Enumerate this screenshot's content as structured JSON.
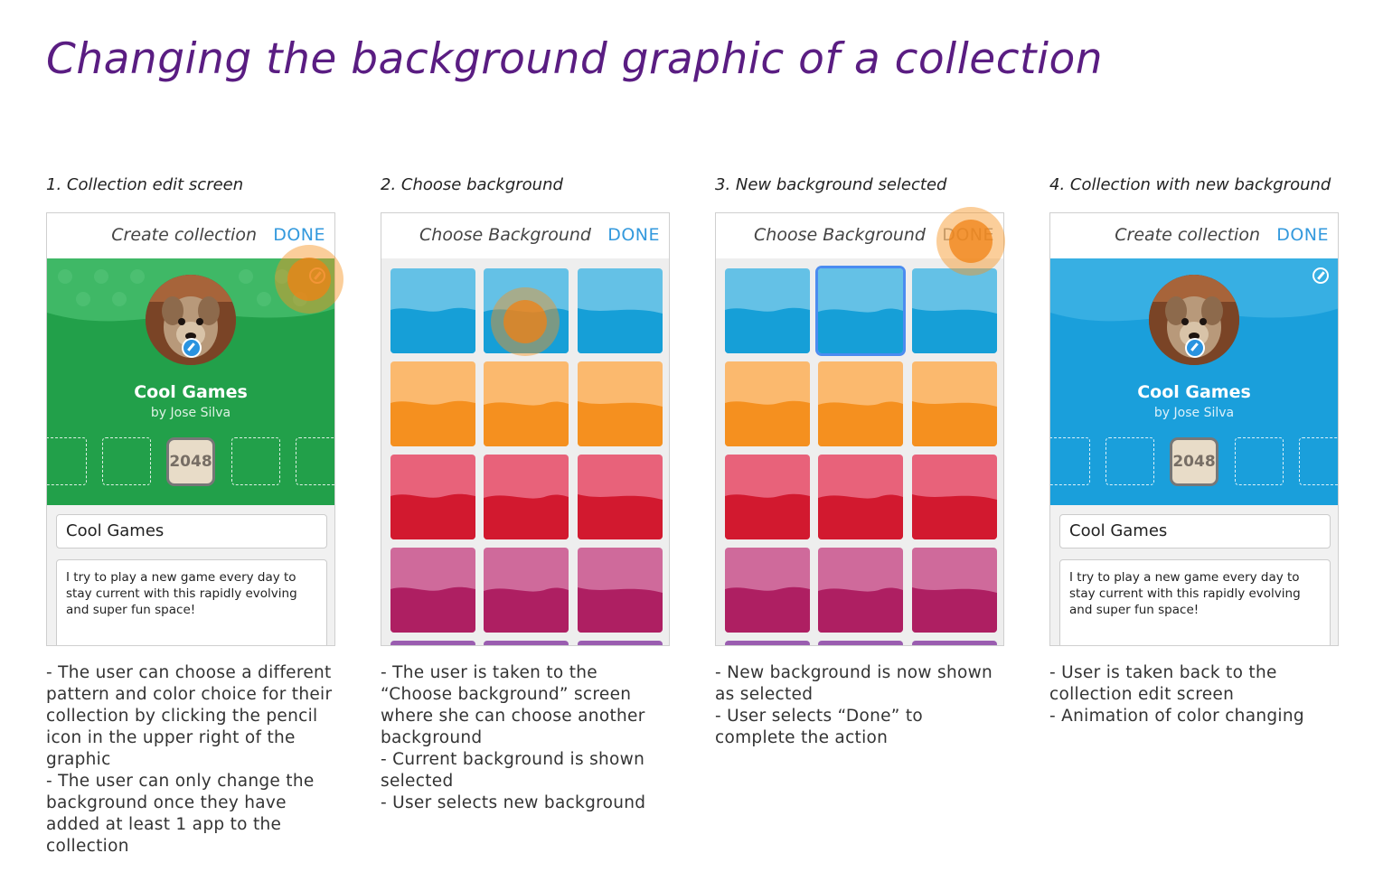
{
  "title": "Changing the background graphic of a collection",
  "colors": {
    "green": "#22a04a",
    "blue": "#1a9fdb",
    "accent_done": "#3399dd",
    "title": "#5a1d82",
    "tap": "#f6921e",
    "selected": "#4b8cf0"
  },
  "steps": [
    {
      "heading": "1. Collection edit screen",
      "screen": {
        "title": "Create collection",
        "done": "DONE"
      },
      "notes": [
        "- The user can choose a different pattern and color choice for their collection by clicking the pencil icon in the upper right of the graphic",
        "- The user can only change the background once they have added at least 1 app to the collection"
      ]
    },
    {
      "heading": "2. Choose background",
      "screen": {
        "title": "Choose Background",
        "done": "DONE"
      },
      "notes": [
        "- The user is taken to the “Choose background” screen where she can choose another background",
        "- Current background is shown selected",
        "- User selects new background"
      ]
    },
    {
      "heading": "3. New background selected",
      "screen": {
        "title": "Choose Background",
        "done": "DONE"
      },
      "notes": [
        "- New background is now shown as selected",
        "- User selects “Done” to complete the action"
      ]
    },
    {
      "heading": "4. Collection with new background",
      "screen": {
        "title": "Create collection",
        "done": "DONE"
      },
      "notes": [
        "- User is taken back to the collection edit screen",
        "- Animation of color changing"
      ]
    }
  ],
  "collection": {
    "name": "Cool Games",
    "author": "by Jose Silva",
    "app_label": "2048",
    "name_field": "Cool Games",
    "description": "I try to play a new game every day to stay current with this rapidly evolving and super fun space!"
  },
  "palette": [
    {
      "name": "blue",
      "top": "#64c1e6",
      "bottom": "#169fd7"
    },
    {
      "name": "orange",
      "top": "#fbb96e",
      "bottom": "#f5901f"
    },
    {
      "name": "red",
      "top": "#e8627a",
      "bottom": "#d2192f"
    },
    {
      "name": "magenta",
      "top": "#cf6a9b",
      "bottom": "#ae1f62"
    }
  ],
  "icons": [
    "pencil-icon",
    "avatar-edit-icon"
  ]
}
